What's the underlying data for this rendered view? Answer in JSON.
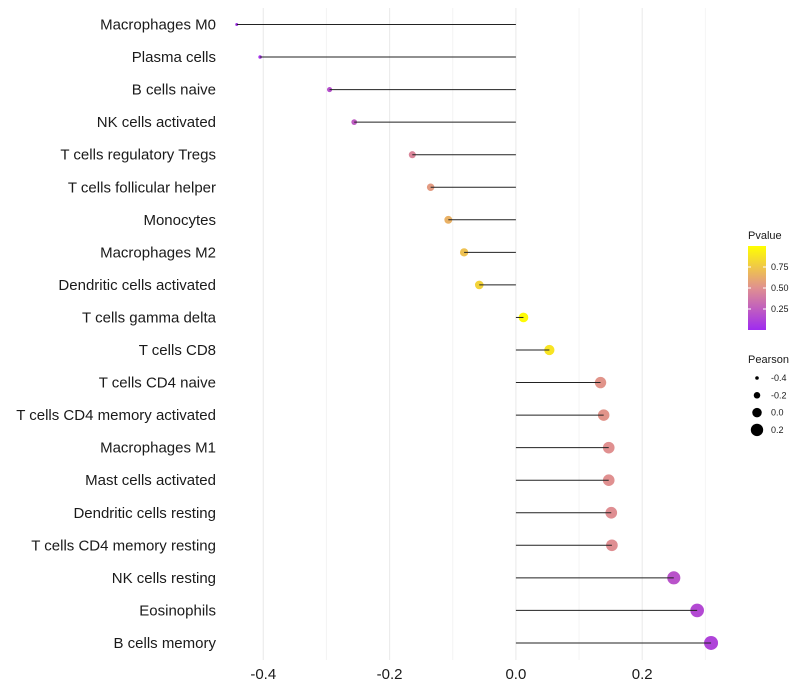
{
  "chart_data": {
    "type": "lollipop",
    "title": "",
    "xlabel": "",
    "ylabel": "",
    "xlim": [
      -0.44,
      0.32
    ],
    "xticks": [
      -0.4,
      -0.2,
      0.0,
      0.2
    ],
    "xtick_labels": [
      "-0.4",
      "-0.2",
      "0.0",
      "0.2"
    ],
    "grid": true,
    "categories": [
      "Macrophages M0",
      "Plasma cells",
      "B cells naive",
      "NK cells activated",
      "T cells regulatory  Tregs",
      "T cells follicular helper",
      "Monocytes",
      "Macrophages M2",
      "Dendritic cells activated",
      "T cells gamma delta",
      "T cells CD8",
      "T cells CD4 naive",
      "T cells CD4 memory activated",
      "Macrophages M1",
      "Mast cells activated",
      "Dendritic cells resting",
      "T cells CD4 memory resting",
      "NK cells resting",
      "Eosinophils",
      "B cells memory"
    ],
    "values": [
      -0.442,
      -0.405,
      -0.295,
      -0.256,
      -0.164,
      -0.135,
      -0.107,
      -0.082,
      -0.058,
      0.012,
      0.053,
      0.134,
      0.139,
      0.147,
      0.147,
      0.151,
      0.152,
      0.25,
      0.287,
      0.309
    ],
    "pvalues": [
      0.03,
      0.04,
      0.18,
      0.24,
      0.45,
      0.55,
      0.65,
      0.72,
      0.8,
      0.98,
      0.88,
      0.52,
      0.52,
      0.5,
      0.5,
      0.49,
      0.49,
      0.2,
      0.15,
      0.12
    ],
    "color_legend": {
      "title": "Pvalue",
      "ticks": [
        0.25,
        0.5,
        0.75
      ],
      "tick_labels": [
        "0.25",
        "0.50",
        "0.75"
      ],
      "range": [
        0.0,
        1.0
      ],
      "colors": [
        "#9f2bf0",
        "#e09090",
        "#ffff00"
      ]
    },
    "size_legend": {
      "title": "Pearson",
      "values": [
        -0.4,
        -0.2,
        0.0,
        0.2
      ],
      "labels": [
        "-0.4",
        "-0.2",
        "0.0",
        "0.2"
      ]
    }
  }
}
